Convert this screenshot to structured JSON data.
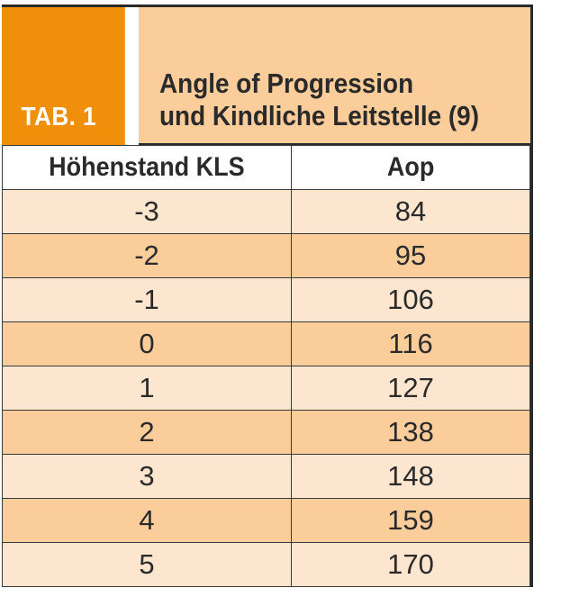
{
  "header": {
    "tab_label": "TAB. 1",
    "title_line1": "Angle of Progression",
    "title_line2": "und Kindliche Leitstelle (9)"
  },
  "colors": {
    "tab_orange": "#f0900a",
    "title_bg": "#fbcd9b",
    "row_light": "#fde6cf",
    "row_dark": "#fbcd9b"
  },
  "table": {
    "columns": [
      "Höhenstand KLS",
      "Aop"
    ],
    "rows": [
      {
        "kls": "-3",
        "aop": "84"
      },
      {
        "kls": "-2",
        "aop": "95"
      },
      {
        "kls": "-1",
        "aop": "106"
      },
      {
        "kls": "0",
        "aop": "116"
      },
      {
        "kls": "1",
        "aop": "127"
      },
      {
        "kls": "2",
        "aop": "138"
      },
      {
        "kls": "3",
        "aop": "148"
      },
      {
        "kls": "4",
        "aop": "159"
      },
      {
        "kls": "5",
        "aop": "170"
      }
    ]
  }
}
